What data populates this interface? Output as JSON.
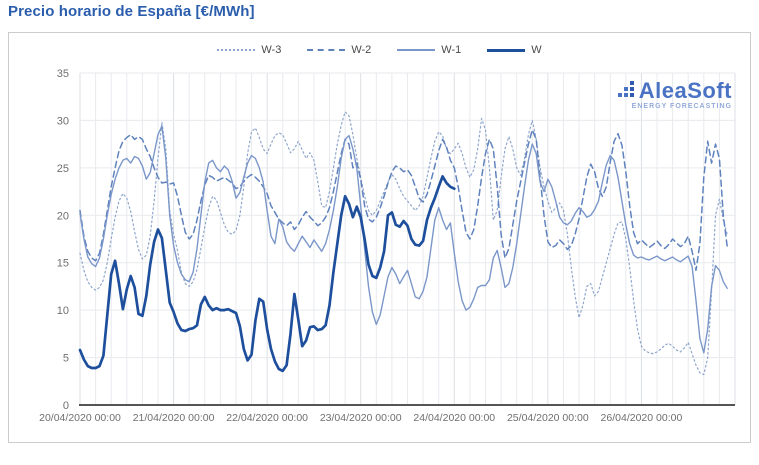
{
  "page": {
    "title": "Precio horario de España [€/MWh]"
  },
  "logo": {
    "name": "AleaSoft",
    "tagline": "ENERGY FORECASTING"
  },
  "colors": {
    "title": "#2b5dad",
    "grid": "#e8eaee",
    "grid_day": "#dcdfe4",
    "axis_line": "#555555",
    "axis_text": "#6f6f6f",
    "card_border": "#cccccc"
  },
  "chart_data": {
    "type": "line",
    "title": "Precio horario de España [€/MWh]",
    "ylabel": "",
    "xlabel": "",
    "ylim": [
      0,
      35
    ],
    "yticks": [
      0,
      5,
      10,
      15,
      20,
      25,
      30,
      35
    ],
    "grid": true,
    "legend_position": "top",
    "x_axis": {
      "total_hours": 168,
      "minor_grid_hours": 4,
      "tick_every_hours": 24,
      "tick_labels": [
        "20/04/2020 00:00",
        "21/04/2020 00:00",
        "22/04/2020 00:00",
        "23/04/2020 00:00",
        "24/04/2020 00:00",
        "25/04/2020 00:00",
        "26/04/2020 00:00"
      ]
    },
    "series": [
      {
        "name": "W-3",
        "style": "dotted",
        "color": "#8fa6cd",
        "values": [
          16.0,
          14.2,
          13.0,
          12.4,
          12.1,
          12.4,
          13.2,
          15.0,
          17.5,
          19.8,
          21.5,
          22.3,
          21.8,
          20.4,
          18.3,
          16.4,
          15.4,
          15.8,
          17.8,
          21.5,
          26.0,
          29.8,
          27.0,
          20.5,
          18.0,
          16.3,
          14.0,
          12.8,
          12.5,
          13.0,
          14.3,
          16.5,
          18.8,
          20.8,
          22.0,
          21.6,
          20.3,
          19.0,
          18.2,
          18.0,
          18.4,
          20.0,
          23.0,
          26.5,
          28.8,
          29.2,
          28.2,
          27.0,
          26.5,
          27.5,
          28.4,
          28.7,
          28.5,
          27.6,
          26.6,
          27.0,
          27.8,
          26.9,
          26.0,
          26.6,
          25.8,
          23.5,
          21.0,
          20.8,
          22.5,
          25.0,
          27.5,
          29.5,
          30.9,
          30.5,
          28.5,
          26.0,
          24.0,
          22.0,
          20.5,
          20.0,
          20.5,
          21.5,
          22.5,
          23.5,
          24.3,
          23.8,
          22.8,
          22.0,
          21.5,
          21.0,
          20.5,
          21.0,
          22.0,
          24.0,
          26.0,
          27.8,
          28.8,
          28.4,
          27.0,
          26.5,
          27.0,
          27.6,
          26.5,
          25.0,
          24.0,
          24.8,
          27.0,
          30.2,
          29.0,
          25.0,
          19.5,
          20.5,
          24.0,
          27.0,
          28.3,
          27.0,
          25.0,
          24.2,
          26.0,
          28.5,
          30.0,
          28.0,
          25.0,
          23.0,
          21.5,
          20.3,
          20.8,
          21.3,
          20.5,
          18.0,
          14.5,
          11.5,
          9.2,
          10.5,
          12.5,
          12.8,
          11.5,
          12.0,
          13.5,
          15.0,
          16.5,
          18.0,
          19.2,
          19.3,
          17.5,
          14.5,
          11.0,
          8.0,
          6.2,
          5.7,
          5.5,
          5.4,
          5.6,
          5.9,
          6.3,
          6.5,
          6.2,
          5.8,
          5.6,
          6.0,
          6.6,
          5.4,
          4.2,
          3.4,
          3.2,
          5.0,
          12.0,
          20.0,
          21.7,
          19.5,
          18.0
        ]
      },
      {
        "name": "W-2",
        "style": "dashed",
        "color": "#5f82bd",
        "values": [
          20.5,
          17.8,
          16.2,
          15.5,
          15.2,
          16.0,
          18.0,
          20.5,
          23.0,
          25.0,
          26.8,
          27.8,
          28.2,
          28.5,
          28.0,
          28.3,
          28.0,
          27.0,
          26.2,
          25.0,
          24.0,
          23.4,
          23.5,
          23.3,
          23.4,
          22.0,
          20.0,
          18.2,
          17.5,
          18.0,
          19.5,
          21.5,
          23.2,
          24.2,
          24.0,
          23.6,
          23.8,
          24.0,
          23.7,
          23.4,
          22.8,
          23.0,
          23.6,
          24.0,
          24.3,
          24.0,
          23.6,
          23.0,
          22.3,
          21.0,
          20.3,
          19.6,
          19.2,
          18.9,
          19.3,
          18.5,
          19.0,
          19.8,
          20.4,
          19.8,
          19.4,
          18.9,
          19.2,
          19.8,
          20.8,
          22.5,
          24.5,
          26.5,
          28.0,
          27.5,
          25.0,
          25.5,
          23.8,
          21.0,
          19.6,
          19.3,
          19.8,
          20.8,
          22.0,
          23.4,
          24.6,
          25.2,
          25.0,
          24.6,
          24.8,
          24.2,
          23.0,
          21.8,
          21.4,
          22.2,
          23.6,
          25.2,
          26.8,
          28.0,
          27.2,
          25.8,
          25.0,
          23.0,
          20.5,
          18.2,
          17.5,
          18.5,
          21.0,
          24.0,
          26.5,
          28.0,
          27.0,
          23.0,
          18.0,
          15.5,
          16.5,
          19.0,
          21.5,
          23.5,
          25.5,
          27.5,
          29.0,
          28.0,
          24.0,
          20.0,
          17.2,
          16.6,
          16.8,
          17.4,
          17.0,
          16.4,
          16.8,
          18.0,
          19.6,
          21.8,
          24.0,
          25.4,
          24.6,
          22.8,
          22.0,
          23.0,
          25.6,
          27.8,
          28.6,
          27.4,
          24.6,
          21.0,
          18.2,
          17.0,
          17.4,
          17.0,
          16.6,
          16.9,
          17.3,
          16.8,
          16.5,
          16.9,
          17.5,
          17.1,
          16.7,
          17.0,
          17.8,
          16.2,
          14.2,
          17.0,
          24.0,
          27.8,
          25.5,
          27.5,
          26.0,
          20.0,
          16.7
        ]
      },
      {
        "name": "W-1",
        "style": "solid-thin",
        "color": "#7b97c9",
        "values": [
          20.2,
          17.5,
          15.6,
          14.9,
          14.6,
          15.5,
          17.5,
          20.0,
          22.2,
          23.8,
          25.0,
          25.8,
          26.0,
          25.5,
          26.2,
          26.0,
          25.2,
          23.8,
          24.5,
          26.5,
          28.5,
          29.4,
          26.0,
          20.0,
          16.8,
          15.0,
          13.8,
          13.2,
          13.0,
          14.0,
          16.5,
          20.0,
          23.5,
          25.5,
          25.8,
          25.0,
          24.6,
          25.2,
          24.8,
          23.6,
          21.8,
          22.4,
          24.0,
          25.5,
          26.3,
          26.0,
          25.0,
          23.5,
          20.5,
          17.8,
          17.0,
          19.6,
          18.8,
          17.2,
          16.6,
          16.2,
          17.0,
          17.8,
          17.2,
          16.6,
          17.4,
          16.8,
          16.2,
          17.0,
          18.5,
          20.5,
          23.0,
          26.0,
          28.0,
          28.4,
          27.0,
          25.0,
          21.0,
          16.5,
          12.5,
          9.8,
          8.5,
          9.5,
          11.5,
          13.5,
          14.5,
          13.8,
          12.8,
          13.5,
          14.2,
          12.8,
          11.4,
          11.2,
          12.0,
          13.5,
          16.5,
          19.5,
          20.8,
          19.5,
          18.5,
          19.2,
          16.0,
          13.0,
          11.0,
          10.0,
          10.3,
          11.2,
          12.4,
          12.6,
          12.6,
          13.2,
          15.5,
          16.3,
          14.5,
          12.4,
          12.8,
          14.5,
          17.0,
          20.0,
          23.0,
          25.8,
          27.5,
          26.5,
          23.5,
          22.5,
          23.8,
          23.0,
          21.5,
          19.8,
          19.2,
          19.0,
          19.4,
          20.2,
          20.8,
          20.4,
          19.8,
          20.0,
          20.6,
          21.5,
          23.5,
          25.3,
          26.3,
          25.8,
          24.0,
          21.5,
          19.0,
          17.0,
          15.8,
          15.5,
          15.6,
          15.4,
          15.3,
          15.5,
          15.7,
          15.4,
          15.2,
          15.4,
          15.6,
          15.3,
          15.1,
          15.4,
          15.7,
          14.6,
          11.0,
          7.0,
          5.5,
          8.0,
          12.5,
          14.7,
          14.2,
          13.0,
          12.3
        ]
      },
      {
        "name": "W",
        "style": "solid-thick",
        "color": "#1e4f9c",
        "values": [
          5.8,
          4.8,
          4.1,
          3.9,
          3.9,
          4.1,
          5.2,
          9.5,
          13.8,
          15.2,
          12.8,
          10.1,
          12.2,
          13.6,
          12.4,
          9.6,
          9.4,
          11.5,
          14.8,
          17.2,
          18.5,
          17.6,
          14.2,
          10.8,
          9.8,
          8.6,
          7.9,
          7.8,
          8.0,
          8.1,
          8.4,
          10.6,
          11.4,
          10.5,
          10.0,
          10.2,
          10.0,
          10.0,
          10.1,
          9.9,
          9.7,
          8.3,
          5.9,
          4.7,
          5.3,
          8.9,
          11.2,
          10.9,
          8.0,
          5.9,
          4.6,
          3.8,
          3.6,
          4.2,
          7.5,
          11.7,
          9.0,
          6.2,
          6.8,
          8.2,
          8.3,
          7.9,
          8.0,
          8.4,
          10.5,
          14.0,
          17.0,
          20.0,
          22.0,
          21.2,
          19.8,
          20.9,
          19.8,
          17.5,
          14.8,
          13.6,
          13.4,
          14.5,
          16.2,
          20.0,
          20.3,
          19.0,
          18.8,
          19.4,
          18.9,
          17.5,
          16.9,
          16.8,
          17.3,
          19.5,
          20.8,
          21.8,
          23.0,
          24.1,
          23.4,
          23.0,
          22.8
        ]
      }
    ]
  }
}
